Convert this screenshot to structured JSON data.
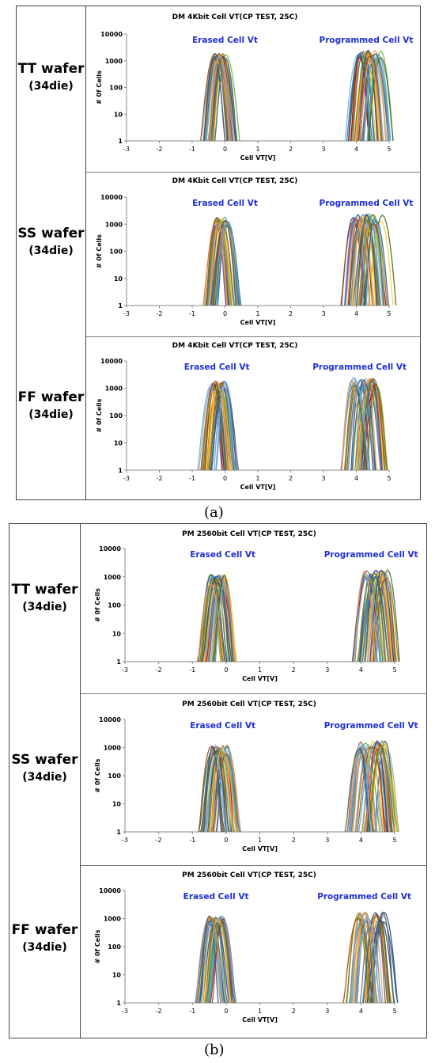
{
  "captions": {
    "a": "(a)",
    "b": "(b)"
  },
  "chart_data": [
    {
      "id": "dm-tt",
      "group": "a",
      "type": "line",
      "row_title": "TT wafer",
      "row_sub": "(34die)",
      "title": "DM 4Kbit Cell VT(CP TEST, 25C)",
      "xlabel": "Cell VT[V]",
      "ylabel": "# 0f Cells",
      "yscale": "log",
      "xlim": [
        -3,
        5
      ],
      "ylim": [
        1,
        10000
      ],
      "xticks": [
        "-3",
        "-2",
        "-1",
        "0",
        "1",
        "2",
        "3",
        "4",
        "5"
      ],
      "yticks": [
        "1",
        "10",
        "100",
        "1000",
        "10000"
      ],
      "annotations": [
        {
          "text": "Erased Cell Vt",
          "x": 0.0
        },
        {
          "text": "Programmed Cell Vt",
          "x": 4.3
        }
      ],
      "erased": {
        "center": -0.15,
        "spread": 0.18,
        "peak": 1500,
        "count": 34
      },
      "programmed": {
        "center": 4.4,
        "spread": 0.35,
        "peak": 2000,
        "count": 34
      },
      "colors": [
        "#4472c4",
        "#ed7d31",
        "#a5a5a5",
        "#ffc000",
        "#5b9bd5",
        "#70ad47",
        "#264478",
        "#9e480e",
        "#636363",
        "#997300",
        "#255e91",
        "#43682b",
        "#7cafdd",
        "#f1975a",
        "#b7b7b7",
        "#ffcd33",
        "#c00000",
        "#2f9e9e",
        "#8064a2",
        "#4bacc6"
      ]
    },
    {
      "id": "dm-ss",
      "group": "a",
      "type": "line",
      "row_title": "SS wafer",
      "row_sub": "(34die)",
      "title": "DM 4Kbit Cell VT(CP TEST, 25C)",
      "xlabel": "Cell VT[V]",
      "ylabel": "# 0f Cells",
      "yscale": "log",
      "xlim": [
        -3,
        5
      ],
      "ylim": [
        1,
        10000
      ],
      "xticks": [
        "-3",
        "-2",
        "-1",
        "0",
        "1",
        "2",
        "3",
        "4",
        "5"
      ],
      "yticks": [
        "1",
        "10",
        "100",
        "1000",
        "10000"
      ],
      "annotations": [
        {
          "text": "Erased Cell Vt",
          "x": 0.0
        },
        {
          "text": "Programmed Cell Vt",
          "x": 4.3
        }
      ],
      "erased": {
        "center": -0.1,
        "spread": 0.2,
        "peak": 1500,
        "count": 34
      },
      "programmed": {
        "center": 4.35,
        "spread": 0.45,
        "peak": 2000,
        "count": 34
      },
      "colors": [
        "#4472c4",
        "#ed7d31",
        "#a5a5a5",
        "#ffc000",
        "#5b9bd5",
        "#70ad47",
        "#264478",
        "#9e480e",
        "#636363",
        "#997300",
        "#255e91",
        "#43682b",
        "#7cafdd",
        "#f1975a",
        "#b7b7b7",
        "#ffcd33",
        "#c00000",
        "#2f9e9e",
        "#8064a2",
        "#4bacc6"
      ]
    },
    {
      "id": "dm-ff",
      "group": "a",
      "type": "line",
      "row_title": "FF wafer",
      "row_sub": "(34die)",
      "title": "DM 4Kbit Cell VT(CP TEST, 25C)",
      "xlabel": "Cell VT[V]",
      "ylabel": "# 0f Cells",
      "yscale": "log",
      "xlim": [
        -3,
        5
      ],
      "ylim": [
        1,
        10000
      ],
      "xticks": [
        "-3",
        "-2",
        "-1",
        "0",
        "1",
        "2",
        "3",
        "4",
        "5"
      ],
      "yticks": [
        "1",
        "10",
        "100",
        "1000",
        "10000"
      ],
      "annotations": [
        {
          "text": "Erased Cell Vt",
          "x": -0.25
        },
        {
          "text": "Programmed Cell Vt",
          "x": 4.1
        }
      ],
      "erased": {
        "center": -0.2,
        "spread": 0.2,
        "peak": 1500,
        "count": 34
      },
      "programmed": {
        "center": 4.25,
        "spread": 0.4,
        "peak": 2000,
        "count": 34
      },
      "colors": [
        "#4472c4",
        "#ed7d31",
        "#a5a5a5",
        "#ffc000",
        "#5b9bd5",
        "#70ad47",
        "#264478",
        "#9e480e",
        "#636363",
        "#997300",
        "#255e91",
        "#43682b",
        "#7cafdd",
        "#f1975a",
        "#b7b7b7",
        "#ffcd33",
        "#c00000",
        "#2f9e9e",
        "#8064a2",
        "#4bacc6"
      ]
    },
    {
      "id": "pm-tt",
      "group": "b",
      "type": "line",
      "row_title": "TT wafer",
      "row_sub": "(34die)",
      "title": "PM 2560bit Cell VT(CP TEST, 25C)",
      "xlabel": "Cell VT[V]",
      "ylabel": "# 0f Cells",
      "yscale": "log",
      "xlim": [
        -3,
        5
      ],
      "ylim": [
        1,
        10000
      ],
      "xticks": [
        "-3",
        "-2",
        "-1",
        "0",
        "1",
        "2",
        "3",
        "4",
        "5"
      ],
      "yticks": [
        "1",
        "10",
        "100",
        "1000",
        "10000"
      ],
      "annotations": [
        {
          "text": "Erased Cell Vt",
          "x": -0.1
        },
        {
          "text": "Programmed Cell Vt",
          "x": 4.3
        }
      ],
      "erased": {
        "center": -0.25,
        "spread": 0.22,
        "peak": 1000,
        "count": 34
      },
      "programmed": {
        "center": 4.45,
        "spread": 0.35,
        "peak": 1400,
        "count": 34
      },
      "colors": [
        "#4472c4",
        "#ed7d31",
        "#a5a5a5",
        "#ffc000",
        "#5b9bd5",
        "#70ad47",
        "#264478",
        "#9e480e",
        "#636363",
        "#997300",
        "#255e91",
        "#43682b",
        "#7cafdd",
        "#f1975a",
        "#b7b7b7",
        "#ffcd33",
        "#c00000",
        "#2f9e9e",
        "#8064a2",
        "#4bacc6"
      ]
    },
    {
      "id": "pm-ss",
      "group": "b",
      "type": "line",
      "row_title": "SS wafer",
      "row_sub": "(34die)",
      "title": "PM 2560bit Cell VT(CP TEST, 25C)",
      "xlabel": "Cell VT[V]",
      "ylabel": "# 0f Cells",
      "yscale": "log",
      "xlim": [
        -3,
        5
      ],
      "ylim": [
        1,
        10000
      ],
      "xticks": [
        "-3",
        "-2",
        "-1",
        "0",
        "1",
        "2",
        "3",
        "4",
        "5"
      ],
      "yticks": [
        "1",
        "10",
        "100",
        "1000",
        "10000"
      ],
      "annotations": [
        {
          "text": "Erased Cell Vt",
          "x": -0.1
        },
        {
          "text": "Programmed Cell Vt",
          "x": 4.3
        }
      ],
      "erased": {
        "center": -0.2,
        "spread": 0.25,
        "peak": 1000,
        "count": 34
      },
      "programmed": {
        "center": 4.35,
        "spread": 0.45,
        "peak": 1400,
        "count": 34
      },
      "colors": [
        "#4472c4",
        "#ed7d31",
        "#a5a5a5",
        "#ffc000",
        "#5b9bd5",
        "#70ad47",
        "#264478",
        "#9e480e",
        "#636363",
        "#997300",
        "#255e91",
        "#43682b",
        "#7cafdd",
        "#f1975a",
        "#b7b7b7",
        "#ffcd33",
        "#c00000",
        "#2f9e9e",
        "#8064a2",
        "#4bacc6"
      ]
    },
    {
      "id": "pm-ff",
      "group": "b",
      "type": "line",
      "row_title": "FF wafer",
      "row_sub": "(34die)",
      "title": "PM 2560bit Cell VT(CP TEST, 25C)",
      "xlabel": "Cell VT[V]",
      "ylabel": "# 0f Cells",
      "yscale": "log",
      "xlim": [
        -3,
        5
      ],
      "ylim": [
        1,
        10000
      ],
      "xticks": [
        "-3",
        "-2",
        "-1",
        "0",
        "1",
        "2",
        "3",
        "4",
        "5"
      ],
      "yticks": [
        "1",
        "10",
        "100",
        "1000",
        "10000"
      ],
      "annotations": [
        {
          "text": "Erased Cell Vt",
          "x": -0.3
        },
        {
          "text": "Programmed Cell Vt",
          "x": 4.1
        }
      ],
      "erased": {
        "center": -0.3,
        "spread": 0.22,
        "peak": 1000,
        "count": 34
      },
      "programmed": {
        "center": 4.3,
        "spread": 0.4,
        "peak": 1400,
        "count": 34
      },
      "colors": [
        "#4472c4",
        "#ed7d31",
        "#a5a5a5",
        "#ffc000",
        "#5b9bd5",
        "#70ad47",
        "#264478",
        "#9e480e",
        "#636363",
        "#997300",
        "#255e91",
        "#43682b",
        "#7cafdd",
        "#f1975a",
        "#b7b7b7",
        "#ffcd33",
        "#c00000",
        "#2f9e9e",
        "#8064a2",
        "#4bacc6"
      ]
    }
  ]
}
